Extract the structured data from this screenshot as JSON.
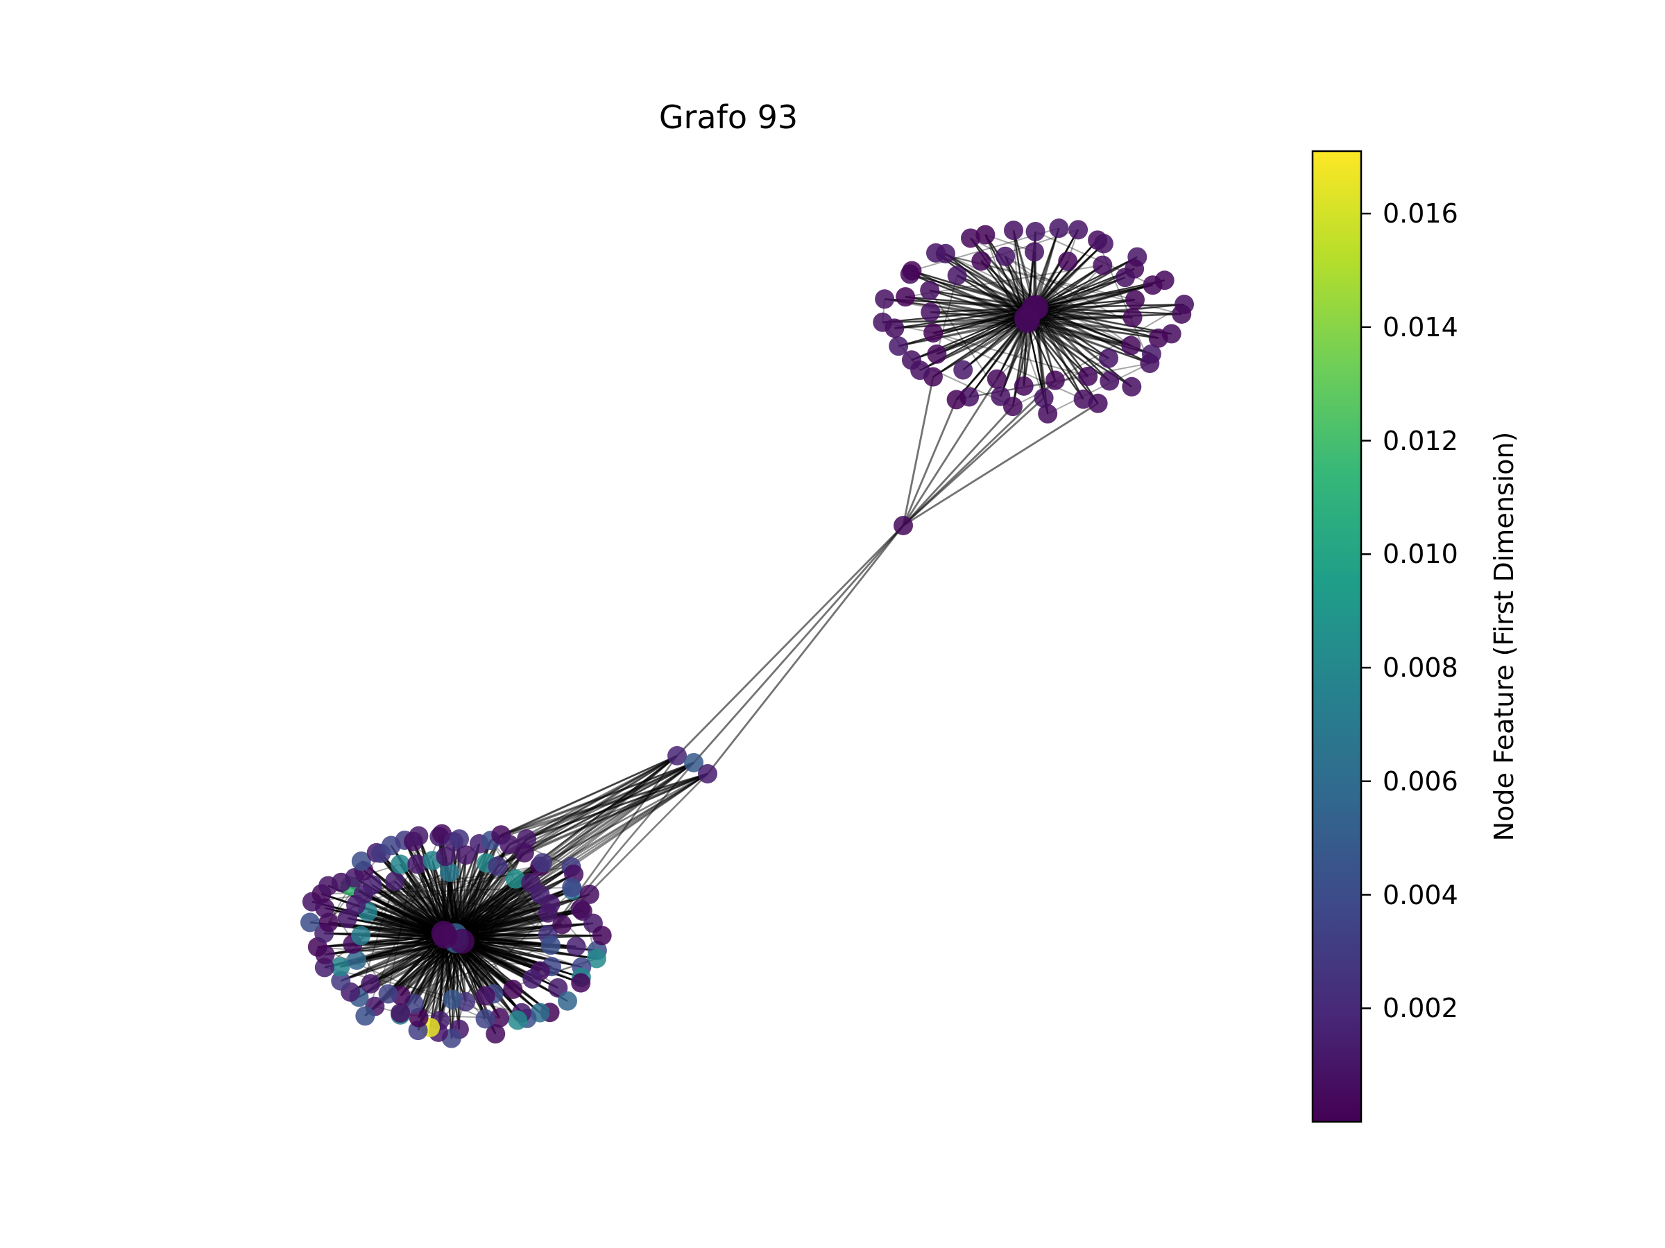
{
  "title": "Grafo 93",
  "colorbar": {
    "label": "Node Feature (First Dimension)",
    "ticks": [
      "0.016",
      "0.014",
      "0.012",
      "0.010",
      "0.008",
      "0.006",
      "0.004",
      "0.002"
    ],
    "tick_values": [
      0.016,
      0.014,
      0.012,
      0.01,
      0.008,
      0.006,
      0.004,
      0.002
    ],
    "vmin": 0.0,
    "vmax": 0.0171,
    "colormap": [
      "#440154",
      "#482878",
      "#3e4989",
      "#31688e",
      "#26828e",
      "#1f9e89",
      "#35b779",
      "#6ece58",
      "#b5de2b",
      "#fde725"
    ]
  },
  "graph": {
    "clusters": [
      {
        "name": "upper-right-cluster",
        "node_count": 60
      },
      {
        "name": "lower-left-cluster",
        "node_count": 110
      }
    ],
    "bridge_nodes": 4,
    "edge_color": "#000000"
  }
}
